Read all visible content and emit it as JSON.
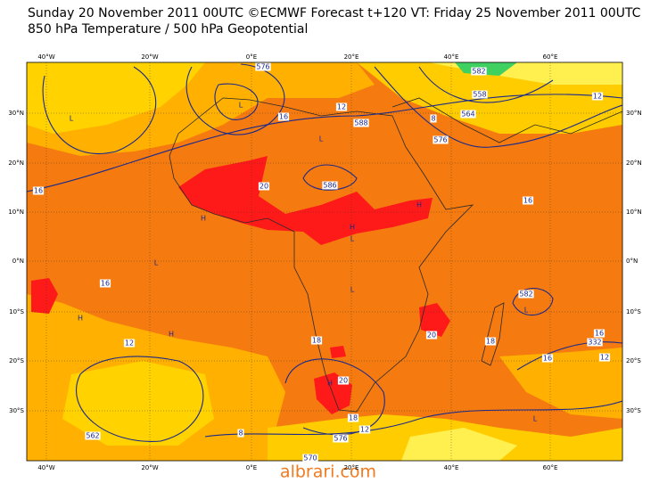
{
  "header": {
    "title": "Sunday 20 November 2011 00UTC ©ECMWF Forecast t+120 VT: Friday 25 November 2011 00UTC",
    "subtitle": "850 hPa Temperature / 500 hPa Geopotential"
  },
  "map": {
    "longitude_labels": [
      "40°W",
      "20°W",
      "0°E",
      "20°E",
      "40°E",
      "60°E"
    ],
    "latitude_labels": [
      "30°N",
      "20°N",
      "10°N",
      "0°N",
      "10°S",
      "20°S",
      "30°S"
    ],
    "contour_labels": [
      "576",
      "588",
      "586",
      "16",
      "12",
      "20",
      "16",
      "16",
      "12",
      "18",
      "20",
      "18",
      "12",
      "8",
      "562",
      "576",
      "570",
      "582",
      "16",
      "332",
      "12",
      "18",
      "20",
      "16",
      "16",
      "12",
      "564",
      "558",
      "582",
      "576",
      "8"
    ],
    "pressure_centres": [
      "L",
      "L",
      "L",
      "L",
      "L",
      "L",
      "L",
      "L",
      "H",
      "H",
      "H",
      "H",
      "H",
      "H"
    ]
  },
  "watermark": "albrari.com"
}
